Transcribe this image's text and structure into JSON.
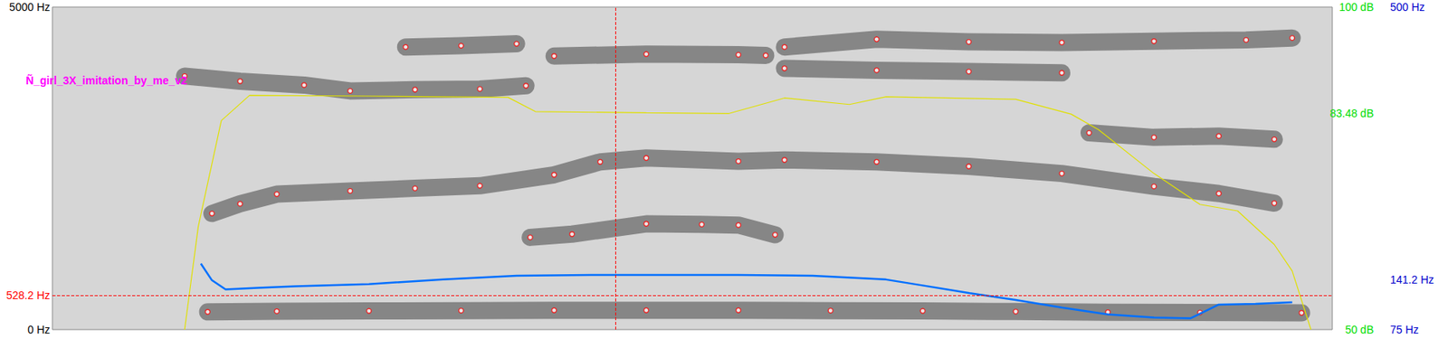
{
  "chart_data": {
    "type": "spectrogram",
    "title": "Ñ_girl_3X_imitation_by_me_v2",
    "xlim": [
      0,
      1.5
    ],
    "ylim": [
      0,
      5000
    ],
    "yticks": [
      {
        "value": 0,
        "label": "0 Hz"
      },
      {
        "value": 528.2,
        "label": "528.2 Hz"
      },
      {
        "value": 5000,
        "label": "5000 Hz"
      }
    ],
    "y2lim": [
      50,
      100
    ],
    "y2ticks": [
      {
        "value": 50,
        "label": "50 dB"
      },
      {
        "value": 83.48,
        "label": "83.48 dB"
      },
      {
        "value": 100,
        "label": "100 dB"
      }
    ],
    "y3lim": [
      75,
      500
    ],
    "y3ticks": [
      {
        "value": 75,
        "label": "75 Hz"
      },
      {
        "value": 141.2,
        "label": "141.2 Hz"
      },
      {
        "value": 500,
        "label": "500 Hz"
      }
    ],
    "tick_labels": "y",
    "grid": false,
    "cursor": {
      "x": 0.66,
      "y": 528.2,
      "color": "#ff0000"
    },
    "series": [
      {
        "type": "scatter",
        "color": "#ff0000",
        "marker": "circle",
        "x": [
          0.182,
          0.263,
          0.371,
          0.479,
          0.588,
          0.696,
          0.804,
          0.912,
          1.02,
          1.129,
          1.237,
          1.345,
          1.464
        ],
        "values": [
          275,
          285,
          290,
          295,
          300,
          300,
          300,
          295,
          290,
          280,
          270,
          265,
          260
        ]
      },
      {
        "type": "scatter",
        "color": "#ff0000",
        "marker": "circle",
        "x": [
          0.187,
          0.22,
          0.263,
          0.349,
          0.425,
          0.501,
          0.588,
          0.642,
          0.696,
          0.804,
          0.858,
          0.966,
          1.074,
          1.183,
          1.291,
          1.367,
          1.432
        ],
        "values": [
          1800,
          1950,
          2100,
          2150,
          2190,
          2230,
          2400,
          2600,
          2660,
          2610,
          2630,
          2600,
          2530,
          2420,
          2220,
          2110,
          1960
        ]
      },
      {
        "type": "scatter",
        "color": "#ff0000",
        "marker": "circle",
        "x": [
          0.56,
          0.609,
          0.696,
          0.761,
          0.804,
          0.847
        ],
        "values": [
          1430,
          1480,
          1640,
          1630,
          1620,
          1470
        ]
      },
      {
        "type": "scatter",
        "color": "#ff0000",
        "marker": "circle",
        "x": [
          0.155,
          0.22,
          0.295,
          0.349,
          0.425,
          0.501,
          0.555,
          0.572,
          0.588,
          0.696,
          0.804,
          0.836,
          0.847,
          0.858,
          0.966,
          1.074,
          1.183
        ],
        "values": [
          3930,
          3850,
          3790,
          3700,
          3720,
          3730,
          3780,
          null,
          4240,
          4270,
          4260,
          4250,
          null,
          4050,
          4020,
          4000,
          3980
        ]
      },
      {
        "type": "scatter",
        "color": "#ff0000",
        "marker": "circle",
        "x": [
          0.414,
          0.479,
          0.544,
          0.7,
          0.858,
          0.966,
          1.074,
          1.183,
          1.291,
          1.399,
          1.453
        ],
        "values": [
          4380,
          4400,
          4430,
          null,
          4380,
          4500,
          4460,
          4450,
          4470,
          4490,
          4520
        ]
      },
      {
        "type": "scatter",
        "color": "#ff0000",
        "marker": "circle",
        "x": [
          1.215,
          1.291,
          1.367,
          1.432
        ],
        "values": [
          3050,
          2980,
          3000,
          2950
        ]
      },
      {
        "type": "line",
        "color": "#e0e000",
        "marker": "none",
        "line_style": "solid",
        "axis": "y2",
        "x": [
          0.155,
          0.171,
          0.198,
          0.231,
          0.371,
          0.534,
          0.566,
          0.696,
          0.793,
          0.858,
          0.934,
          0.977,
          1.129,
          1.194,
          1.226,
          1.291,
          1.345,
          1.389,
          1.432,
          1.453,
          1.475
        ],
        "values": [
          50,
          66,
          82.4,
          86.3,
          86.2,
          86.0,
          83.8,
          83.6,
          83.5,
          85.9,
          84.9,
          86.1,
          85.7,
          83.4,
          81.0,
          74.2,
          69.4,
          68.4,
          63.2,
          59.1,
          50
        ]
      },
      {
        "type": "line",
        "color": "#0070ff",
        "marker": "none",
        "line_style": "solid",
        "axis": "y3",
        "x": [
          0.174,
          0.187,
          0.203,
          0.241,
          0.285,
          0.371,
          0.458,
          0.544,
          0.631,
          0.718,
          0.804,
          0.891,
          0.977,
          1.021,
          1.075,
          1.129,
          1.183,
          1.237,
          1.291,
          1.334,
          1.345,
          1.367,
          1.41,
          1.453
        ],
        "values": [
          162,
          140,
          128,
          130,
          132,
          135,
          141,
          146,
          147,
          147,
          147,
          146,
          141,
          133,
          123,
          114,
          104,
          95,
          91,
          90,
          96,
          108,
          109,
          111
        ]
      }
    ]
  }
}
